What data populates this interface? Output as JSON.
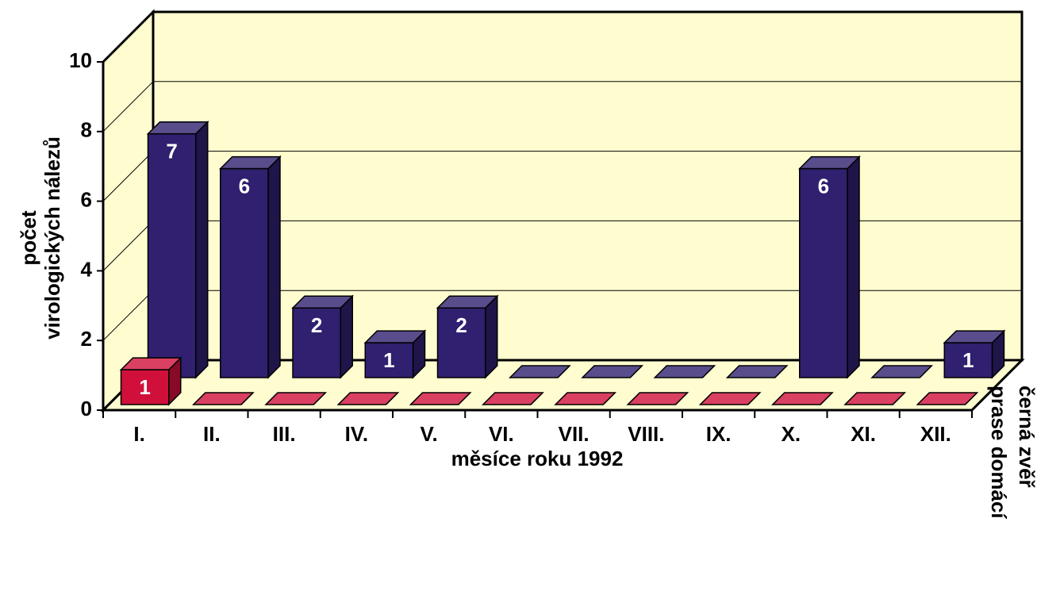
{
  "chart_data": {
    "type": "bar3d",
    "ylabel": [
      "počet",
      "virologických nálezů"
    ],
    "xlabel": "měsíce roku 1992",
    "categories": [
      "I.",
      "II.",
      "III.",
      "IV.",
      "V.",
      "VI.",
      "VII.",
      "VIII.",
      "IX.",
      "X.",
      "XI.",
      "XII."
    ],
    "series": [
      {
        "name": "černá zvěř",
        "color": "#30206f",
        "values": [
          7,
          6,
          2,
          1,
          2,
          0,
          0,
          0,
          0,
          6,
          0,
          1
        ]
      },
      {
        "name": "prase domácí",
        "color": "#d0103a",
        "values": [
          1,
          0,
          0,
          0,
          0,
          0,
          0,
          0,
          0,
          0,
          0,
          0
        ]
      }
    ],
    "ylim": [
      0,
      10
    ],
    "yticks": [
      0,
      2,
      4,
      6,
      8,
      10
    ],
    "grid": true
  }
}
